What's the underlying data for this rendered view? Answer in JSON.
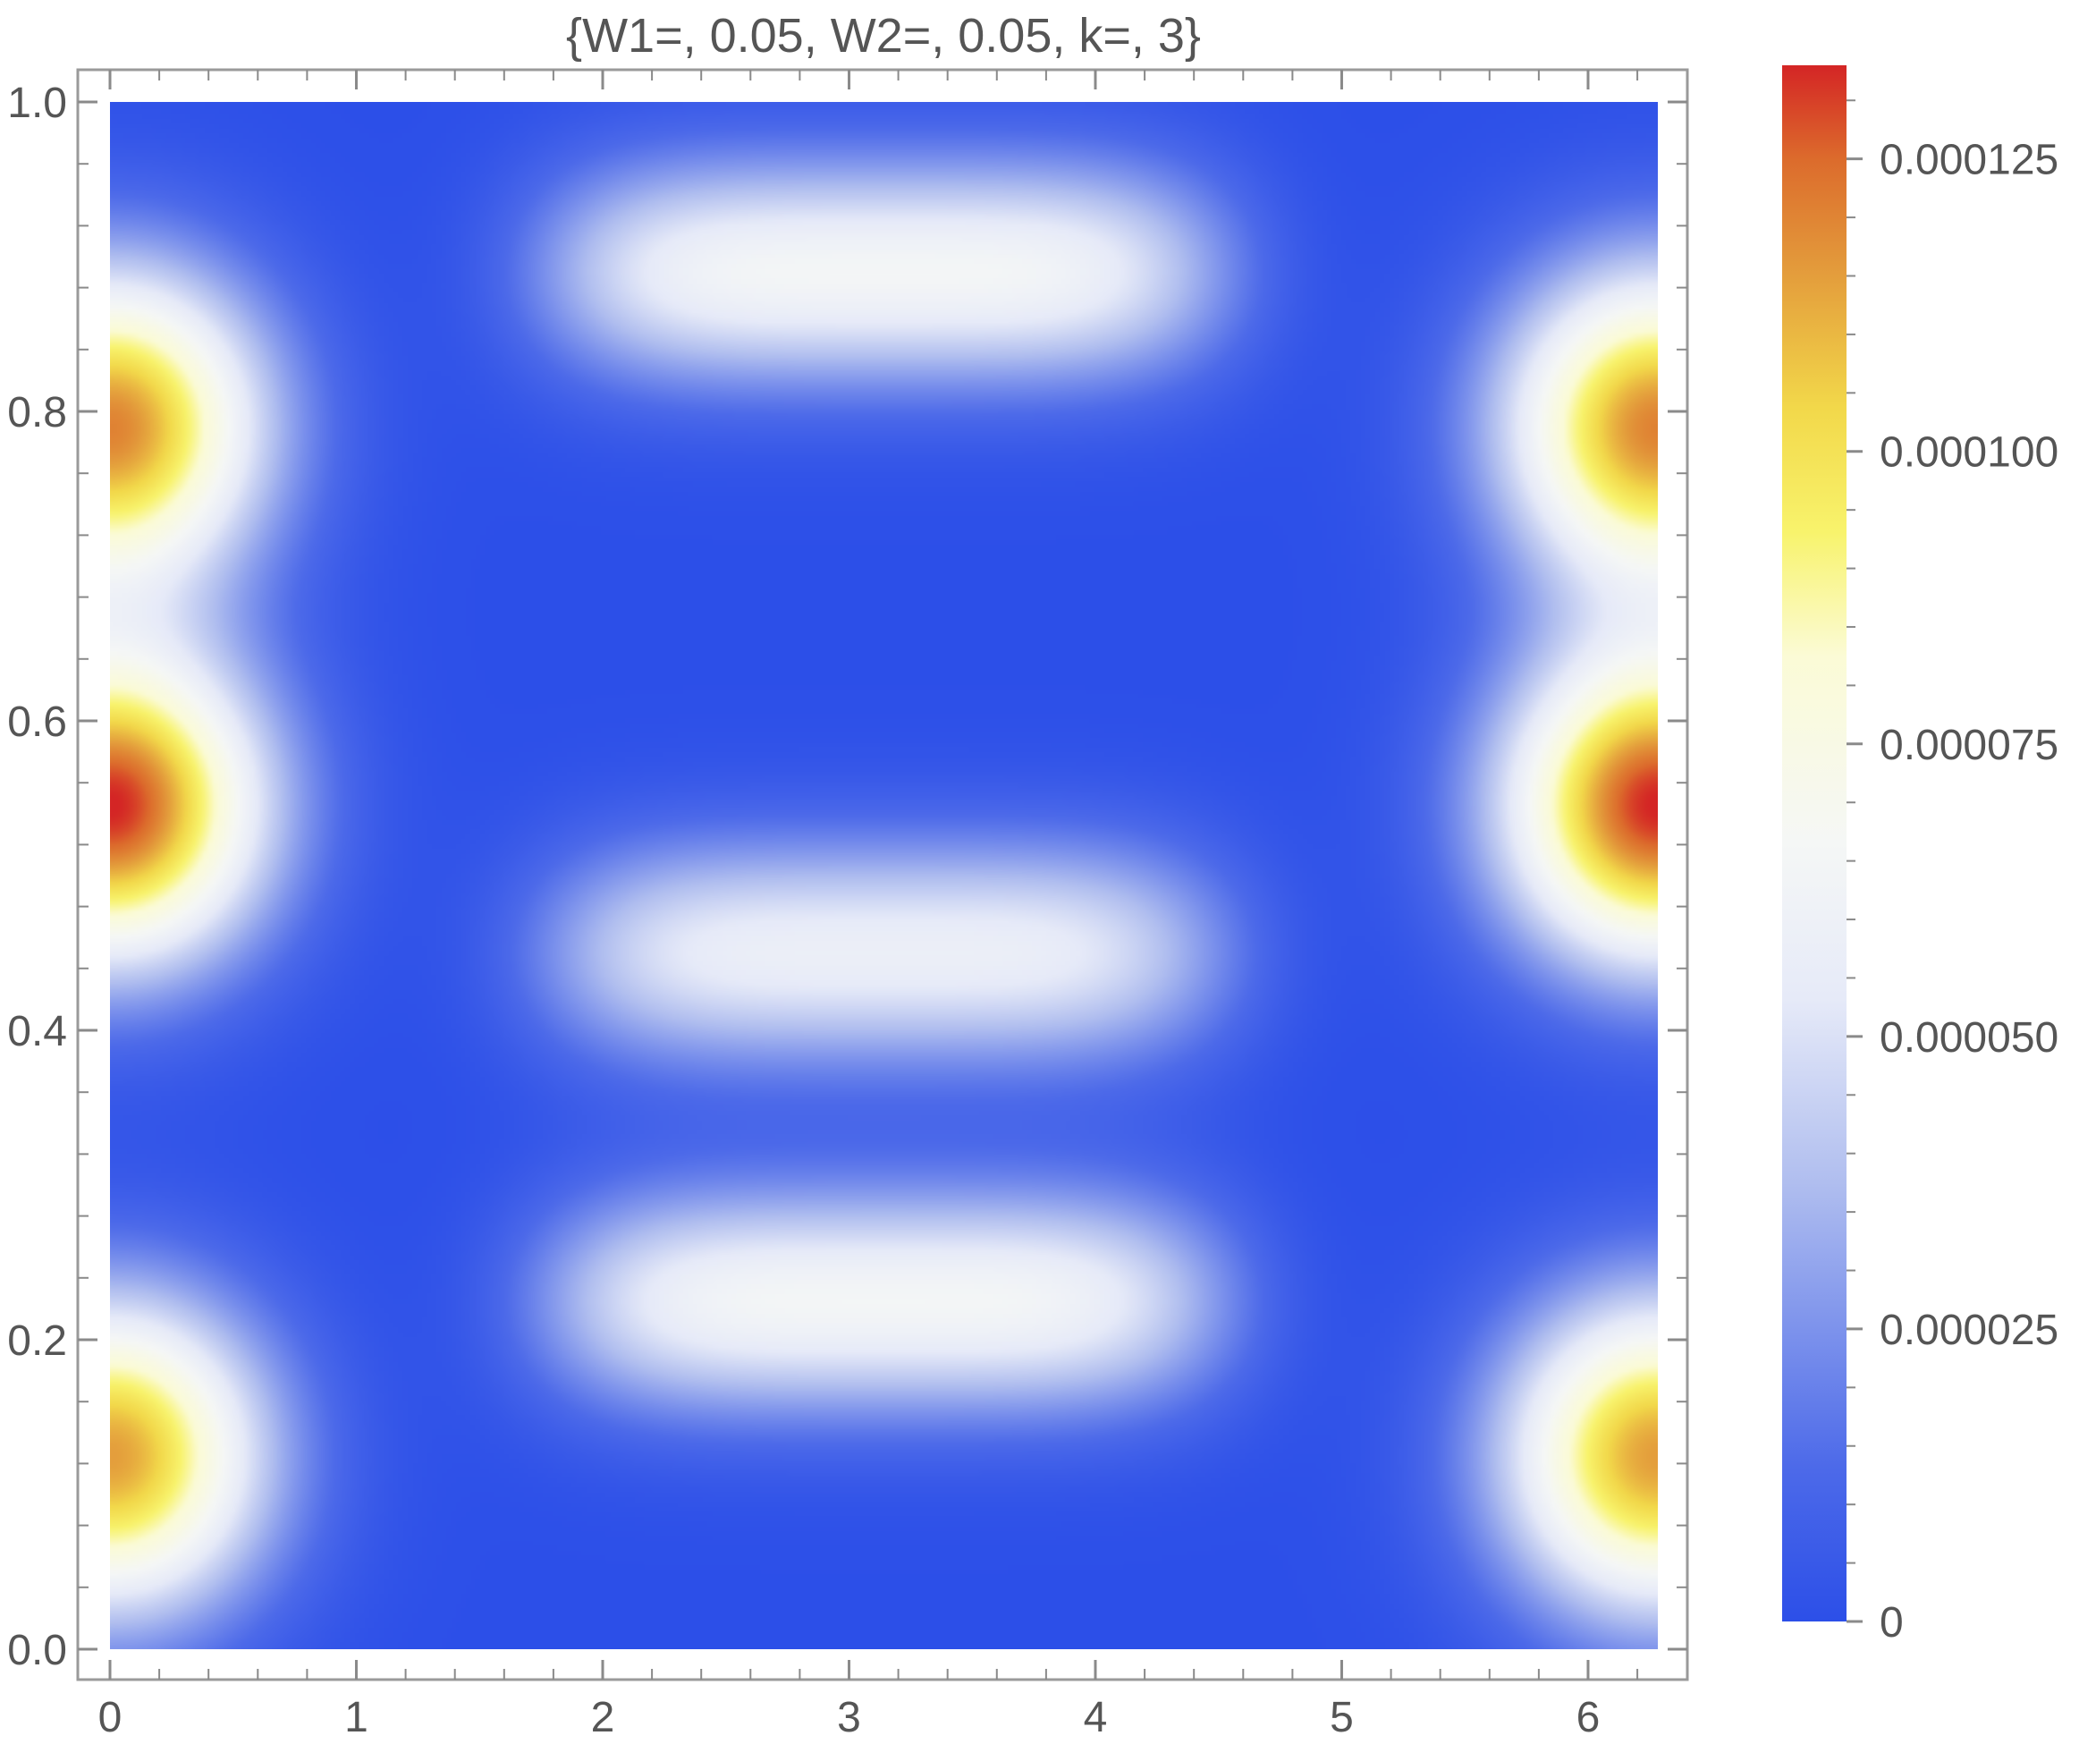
{
  "chart_data": {
    "type": "heatmap",
    "title": "{W1=, 0.05, W2=, 0.05, k=, 3}",
    "xlabel": "",
    "ylabel": "",
    "xlim": [
      0,
      6.2832
    ],
    "ylim": [
      0,
      1
    ],
    "x_ticks": [
      0,
      1,
      2,
      3,
      4,
      5,
      6
    ],
    "x_tick_labels": [
      "0",
      "1",
      "2",
      "3",
      "4",
      "5",
      "6"
    ],
    "y_ticks": [
      0,
      0.2,
      0.4,
      0.6,
      0.8,
      1.0
    ],
    "y_tick_labels": [
      "0.0",
      "0.2",
      "0.4",
      "0.6",
      "0.8",
      "1.0"
    ],
    "colorbar": {
      "range": [
        0,
        0.000133
      ],
      "ticks": [
        0,
        2.5e-05,
        5e-05,
        7.5e-05,
        0.0001,
        0.000125
      ],
      "tick_labels": [
        "0",
        "0.000025",
        "0.000050",
        "0.000075",
        "0.000100",
        "0.000125"
      ],
      "colormap": [
        {
          "at": 0.0,
          "color": "#2c4fe8"
        },
        {
          "at": 0.1,
          "color": "#4d6ae9"
        },
        {
          "at": 0.28,
          "color": "#afbdef"
        },
        {
          "at": 0.4,
          "color": "#e6eaf8"
        },
        {
          "at": 0.5,
          "color": "#f5f7f6"
        },
        {
          "at": 0.62,
          "color": "#fbfbd6"
        },
        {
          "at": 0.7,
          "color": "#f8f36c"
        },
        {
          "at": 0.78,
          "color": "#f2d84a"
        },
        {
          "at": 0.87,
          "color": "#e39a3b"
        },
        {
          "at": 0.94,
          "color": "#dc6b2c"
        },
        {
          "at": 1.0,
          "color": "#d42525"
        }
      ]
    },
    "features": [
      {
        "kind": "edge-peak",
        "x": 0,
        "y": 0.125,
        "value": 0.000115
      },
      {
        "kind": "edge-peak",
        "x": 6.2832,
        "y": 0.125,
        "value": 0.000115
      },
      {
        "kind": "edge-peak",
        "x": 0,
        "y": 0.545,
        "value": 0.000133
      },
      {
        "kind": "edge-peak",
        "x": 6.2832,
        "y": 0.545,
        "value": 0.000133
      },
      {
        "kind": "edge-peak",
        "x": 0,
        "y": 0.79,
        "value": 0.00012
      },
      {
        "kind": "edge-peak",
        "x": 6.2832,
        "y": 0.79,
        "value": 0.00012
      },
      {
        "kind": "center-band",
        "x": 3.1416,
        "y": 0.225,
        "value": 6.5e-05
      },
      {
        "kind": "center-band",
        "x": 3.1416,
        "y": 0.45,
        "value": 5.8e-05
      },
      {
        "kind": "center-band",
        "x": 3.1416,
        "y": 0.89,
        "value": 6.5e-05
      }
    ]
  }
}
